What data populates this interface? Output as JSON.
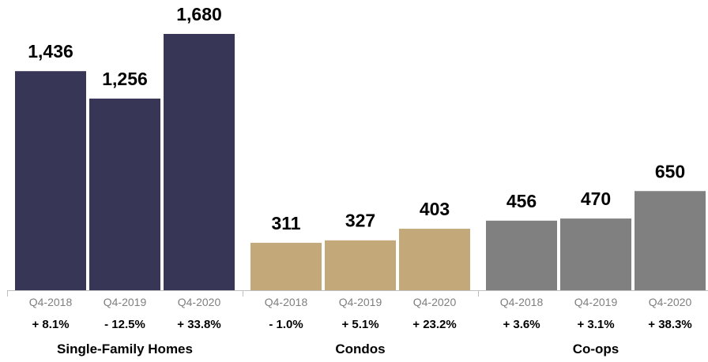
{
  "chart_data": {
    "type": "bar",
    "ylim": [
      0,
      1800
    ],
    "grid": false,
    "groups": [
      {
        "name": "Single-Family Homes",
        "color": "#383657",
        "categories": [
          "Q4-2018",
          "Q4-2019",
          "Q4-2020"
        ],
        "values": [
          1436,
          1256,
          1680
        ],
        "value_labels": [
          "1,436",
          "1,256",
          "1,680"
        ],
        "changes": [
          "+ 8.1%",
          "- 12.5%",
          "+ 33.8%"
        ]
      },
      {
        "name": "Condos",
        "color": "#c3a97a",
        "categories": [
          "Q4-2018",
          "Q4-2019",
          "Q4-2020"
        ],
        "values": [
          311,
          327,
          403
        ],
        "value_labels": [
          "311",
          "327",
          "403"
        ],
        "changes": [
          "- 1.0%",
          "+ 5.1%",
          "+ 23.2%"
        ]
      },
      {
        "name": "Co-ops",
        "color": "#808080",
        "categories": [
          "Q4-2018",
          "Q4-2019",
          "Q4-2020"
        ],
        "values": [
          456,
          470,
          650
        ],
        "value_labels": [
          "456",
          "470",
          "650"
        ],
        "changes": [
          "+ 3.6%",
          "+ 3.1%",
          "+ 38.3%"
        ]
      }
    ]
  }
}
